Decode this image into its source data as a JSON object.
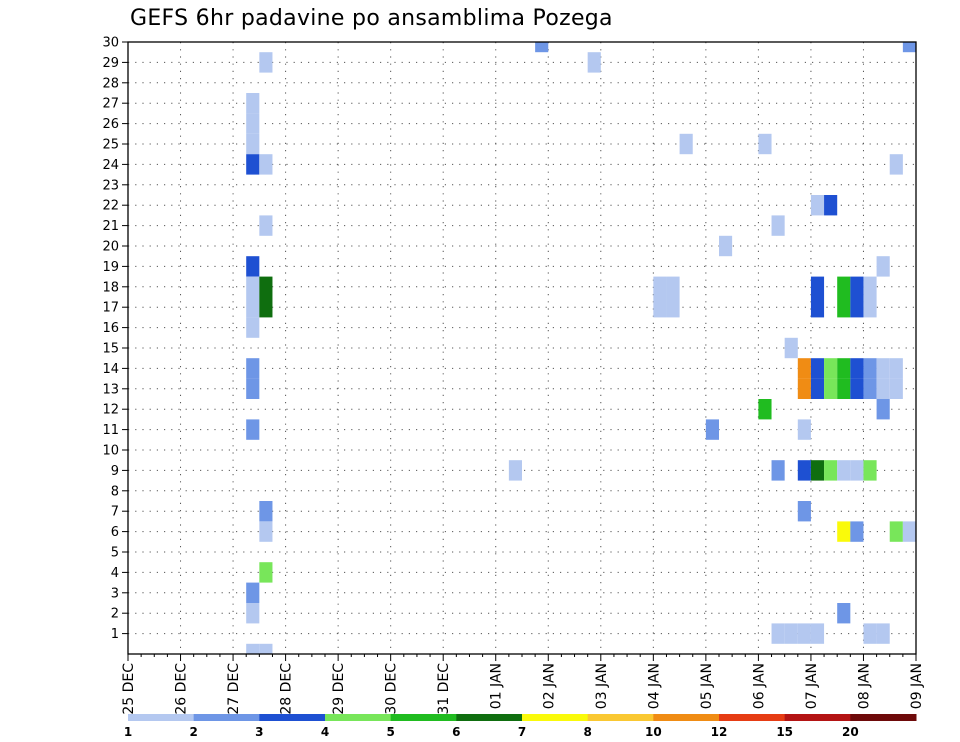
{
  "chart_data": {
    "type": "heatmap",
    "title": "GEFS 6hr padavine po ansamblima Pozega",
    "xlabel": "",
    "ylabel": "",
    "y_ticks": [
      1,
      2,
      3,
      4,
      5,
      6,
      7,
      8,
      9,
      10,
      11,
      12,
      13,
      14,
      15,
      16,
      17,
      18,
      19,
      20,
      21,
      22,
      23,
      24,
      25,
      26,
      27,
      28,
      29,
      30
    ],
    "ylim": [
      0,
      30
    ],
    "x_dates": [
      "25 DEC",
      "26 DEC",
      "27 DEC",
      "28 DEC",
      "29 DEC",
      "30 DEC",
      "31 DEC",
      "01 JAN",
      "02 JAN",
      "03 JAN",
      "04 JAN",
      "05 JAN",
      "06 JAN",
      "07 JAN",
      "08 JAN",
      "09 JAN"
    ],
    "time_step_hours": 6,
    "grid": true,
    "colorbar": {
      "levels": [
        "1",
        "2",
        "3",
        "4",
        "5",
        "6",
        "7",
        "8",
        "10",
        "12",
        "15",
        "20"
      ],
      "colors": [
        "#b4c8f0",
        "#6e96e6",
        "#1e50d2",
        "#78e65a",
        "#20bc20",
        "#0f6e0f",
        "#fafa0a",
        "#fac832",
        "#f08c14",
        "#e63c14",
        "#b41414",
        "#6e0a0a"
      ]
    },
    "cells": [
      {
        "member": 30,
        "time": "01 JAN 18Z",
        "level": 2
      },
      {
        "member": 30,
        "time": "08 JAN 18Z",
        "level": 2
      },
      {
        "member": 29,
        "time": "27 DEC 12Z",
        "level": 1
      },
      {
        "member": 29,
        "time": "02 JAN 18Z",
        "level": 1
      },
      {
        "member": 27,
        "time": "27 DEC 06Z",
        "level": 1
      },
      {
        "member": 26,
        "time": "27 DEC 06Z",
        "level": 1
      },
      {
        "member": 25,
        "time": "27 DEC 06Z",
        "level": 1
      },
      {
        "member": 25,
        "time": "04 JAN 12Z",
        "level": 1
      },
      {
        "member": 25,
        "time": "06 JAN 00Z",
        "level": 1
      },
      {
        "member": 24,
        "time": "27 DEC 06Z",
        "level": 3
      },
      {
        "member": 24,
        "time": "27 DEC 12Z",
        "level": 1
      },
      {
        "member": 24,
        "time": "08 JAN 12Z",
        "level": 1
      },
      {
        "member": 22,
        "time": "07 JAN 00Z",
        "level": 1
      },
      {
        "member": 22,
        "time": "07 JAN 06Z",
        "level": 3
      },
      {
        "member": 21,
        "time": "27 DEC 12Z",
        "level": 1
      },
      {
        "member": 21,
        "time": "06 JAN 06Z",
        "level": 1
      },
      {
        "member": 20,
        "time": "05 JAN 06Z",
        "level": 1
      },
      {
        "member": 19,
        "time": "27 DEC 06Z",
        "level": 3
      },
      {
        "member": 19,
        "time": "08 JAN 06Z",
        "level": 1
      },
      {
        "member": 18,
        "time": "27 DEC 06Z",
        "level": 1
      },
      {
        "member": 18,
        "time": "27 DEC 12Z",
        "level": 6
      },
      {
        "member": 18,
        "time": "04 JAN 00Z",
        "level": 1
      },
      {
        "member": 18,
        "time": "04 JAN 06Z",
        "level": 1
      },
      {
        "member": 18,
        "time": "07 JAN 00Z",
        "level": 3
      },
      {
        "member": 18,
        "time": "07 JAN 12Z",
        "level": 5
      },
      {
        "member": 18,
        "time": "07 JAN 18Z",
        "level": 3
      },
      {
        "member": 18,
        "time": "08 JAN 00Z",
        "level": 1
      },
      {
        "member": 17,
        "time": "27 DEC 06Z",
        "level": 1
      },
      {
        "member": 17,
        "time": "27 DEC 12Z",
        "level": 6
      },
      {
        "member": 17,
        "time": "04 JAN 00Z",
        "level": 1
      },
      {
        "member": 17,
        "time": "04 JAN 06Z",
        "level": 1
      },
      {
        "member": 17,
        "time": "07 JAN 00Z",
        "level": 3
      },
      {
        "member": 17,
        "time": "07 JAN 12Z",
        "level": 5
      },
      {
        "member": 17,
        "time": "07 JAN 18Z",
        "level": 3
      },
      {
        "member": 17,
        "time": "08 JAN 00Z",
        "level": 1
      },
      {
        "member": 16,
        "time": "27 DEC 06Z",
        "level": 1
      },
      {
        "member": 15,
        "time": "06 JAN 12Z",
        "level": 1
      },
      {
        "member": 14,
        "time": "27 DEC 06Z",
        "level": 2
      },
      {
        "member": 14,
        "time": "06 JAN 18Z",
        "level": 9
      },
      {
        "member": 14,
        "time": "07 JAN 00Z",
        "level": 3
      },
      {
        "member": 14,
        "time": "07 JAN 06Z",
        "level": 4
      },
      {
        "member": 14,
        "time": "07 JAN 12Z",
        "level": 5
      },
      {
        "member": 14,
        "time": "07 JAN 18Z",
        "level": 3
      },
      {
        "member": 14,
        "time": "08 JAN 00Z",
        "level": 2
      },
      {
        "member": 14,
        "time": "08 JAN 06Z",
        "level": 1
      },
      {
        "member": 14,
        "time": "08 JAN 12Z",
        "level": 1
      },
      {
        "member": 13,
        "time": "27 DEC 06Z",
        "level": 2
      },
      {
        "member": 13,
        "time": "06 JAN 18Z",
        "level": 9
      },
      {
        "member": 13,
        "time": "07 JAN 00Z",
        "level": 3
      },
      {
        "member": 13,
        "time": "07 JAN 06Z",
        "level": 4
      },
      {
        "member": 13,
        "time": "07 JAN 12Z",
        "level": 5
      },
      {
        "member": 13,
        "time": "07 JAN 18Z",
        "level": 3
      },
      {
        "member": 13,
        "time": "08 JAN 00Z",
        "level": 2
      },
      {
        "member": 13,
        "time": "08 JAN 06Z",
        "level": 1
      },
      {
        "member": 13,
        "time": "08 JAN 12Z",
        "level": 1
      },
      {
        "member": 12,
        "time": "06 JAN 00Z",
        "level": 5
      },
      {
        "member": 12,
        "time": "08 JAN 06Z",
        "level": 2
      },
      {
        "member": 11,
        "time": "27 DEC 06Z",
        "level": 2
      },
      {
        "member": 11,
        "time": "05 JAN 00Z",
        "level": 2
      },
      {
        "member": 11,
        "time": "06 JAN 18Z",
        "level": 1
      },
      {
        "member": 9,
        "time": "01 JAN 06Z",
        "level": 1
      },
      {
        "member": 9,
        "time": "06 JAN 06Z",
        "level": 2
      },
      {
        "member": 9,
        "time": "06 JAN 18Z",
        "level": 3
      },
      {
        "member": 9,
        "time": "07 JAN 00Z",
        "level": 6
      },
      {
        "member": 9,
        "time": "07 JAN 06Z",
        "level": 4
      },
      {
        "member": 9,
        "time": "07 JAN 12Z",
        "level": 1
      },
      {
        "member": 9,
        "time": "07 JAN 18Z",
        "level": 1
      },
      {
        "member": 9,
        "time": "08 JAN 00Z",
        "level": 4
      },
      {
        "member": 7,
        "time": "27 DEC 12Z",
        "level": 2
      },
      {
        "member": 7,
        "time": "06 JAN 18Z",
        "level": 2
      },
      {
        "member": 6,
        "time": "27 DEC 12Z",
        "level": 1
      },
      {
        "member": 6,
        "time": "07 JAN 12Z",
        "level": 7
      },
      {
        "member": 6,
        "time": "07 JAN 18Z",
        "level": 2
      },
      {
        "member": 6,
        "time": "08 JAN 12Z",
        "level": 4
      },
      {
        "member": 6,
        "time": "08 JAN 18Z",
        "level": 1
      },
      {
        "member": 6,
        "time": "09 JAN 00Z",
        "level": 1
      },
      {
        "member": 4,
        "time": "27 DEC 12Z",
        "level": 4
      },
      {
        "member": 3,
        "time": "27 DEC 06Z",
        "level": 2
      },
      {
        "member": 2,
        "time": "27 DEC 06Z",
        "level": 1
      },
      {
        "member": 2,
        "time": "07 JAN 12Z",
        "level": 2
      },
      {
        "member": 1,
        "time": "06 JAN 06Z",
        "level": 1
      },
      {
        "member": 1,
        "time": "06 JAN 12Z",
        "level": 1
      },
      {
        "member": 1,
        "time": "06 JAN 18Z",
        "level": 1
      },
      {
        "member": 1,
        "time": "07 JAN 00Z",
        "level": 1
      },
      {
        "member": 1,
        "time": "08 JAN 00Z",
        "level": 1
      },
      {
        "member": 1,
        "time": "08 JAN 06Z",
        "level": 1
      },
      {
        "member": 0,
        "time": "27 DEC 06Z",
        "level": 1
      },
      {
        "member": 0,
        "time": "27 DEC 12Z",
        "level": 1
      }
    ]
  }
}
